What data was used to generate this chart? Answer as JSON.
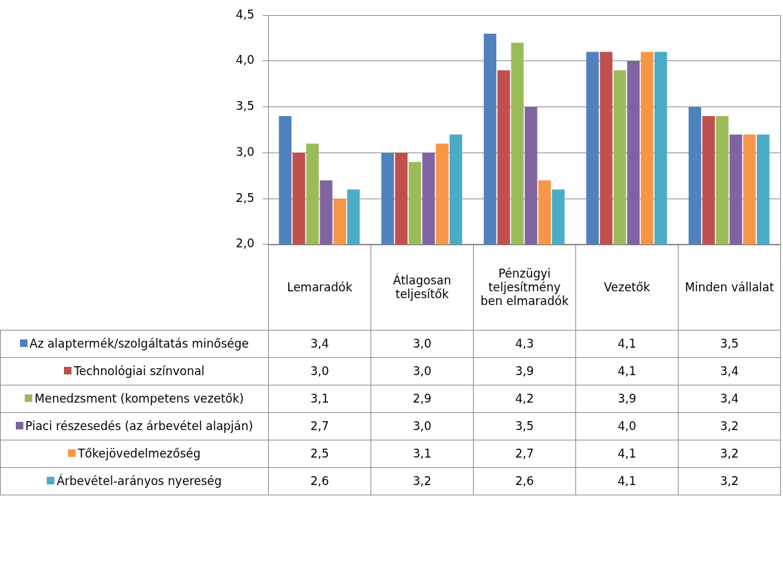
{
  "chart_data": {
    "type": "bar",
    "categories": [
      "Lemaradók",
      "Átlagosan teljesítők",
      "Pénzügyi teljesítmény ben elmaradók",
      "Vezetők",
      "Minden vállalat"
    ],
    "ylim": [
      2,
      4.5
    ],
    "yticks": [
      {
        "value": 2,
        "label": "2,0"
      },
      {
        "value": 2.5,
        "label": "2,5"
      },
      {
        "value": 3,
        "label": "3,0"
      },
      {
        "value": 3.5,
        "label": "3,5"
      },
      {
        "value": 4,
        "label": "4,0"
      },
      {
        "value": 4.5,
        "label": "4,5"
      }
    ],
    "grid": "y",
    "legend": "left",
    "series": [
      {
        "name": "Az alaptermék/szolgáltatás minősége",
        "color": "#4f81bd",
        "values": [
          3.4,
          3.0,
          4.3,
          4.1,
          3.5
        ],
        "value_labels": [
          "3,4",
          "3,0",
          "4,3",
          "4,1",
          "3,5"
        ]
      },
      {
        "name": "Technológiai színvonal",
        "color": "#c0504d",
        "values": [
          3.0,
          3.0,
          3.9,
          4.1,
          3.4
        ],
        "value_labels": [
          "3,0",
          "3,0",
          "3,9",
          "4,1",
          "3,4"
        ]
      },
      {
        "name": "Menedzsment (kompetens vezetők)",
        "color": "#9bbb59",
        "values": [
          3.1,
          2.9,
          4.2,
          3.9,
          3.4
        ],
        "value_labels": [
          "3,1",
          "2,9",
          "4,2",
          "3,9",
          "3,4"
        ]
      },
      {
        "name": "Piaci részesedés (az árbevétel alapján)",
        "color": "#8064a2",
        "values": [
          2.7,
          3.0,
          3.5,
          4.0,
          3.2
        ],
        "value_labels": [
          "2,7",
          "3,0",
          "3,5",
          "4,0",
          "3,2"
        ]
      },
      {
        "name": "Tőkejövedelmezőség",
        "color": "#f79646",
        "values": [
          2.5,
          3.1,
          2.7,
          4.1,
          3.2
        ],
        "value_labels": [
          "2,5",
          "3,1",
          "2,7",
          "4,1",
          "3,2"
        ]
      },
      {
        "name": "Árbevétel-arányos nyereség",
        "color": "#4bacc6",
        "values": [
          2.6,
          3.2,
          2.6,
          4.1,
          3.2
        ],
        "value_labels": [
          "2,6",
          "3,2",
          "2,6",
          "4,1",
          "3,2"
        ]
      }
    ]
  }
}
